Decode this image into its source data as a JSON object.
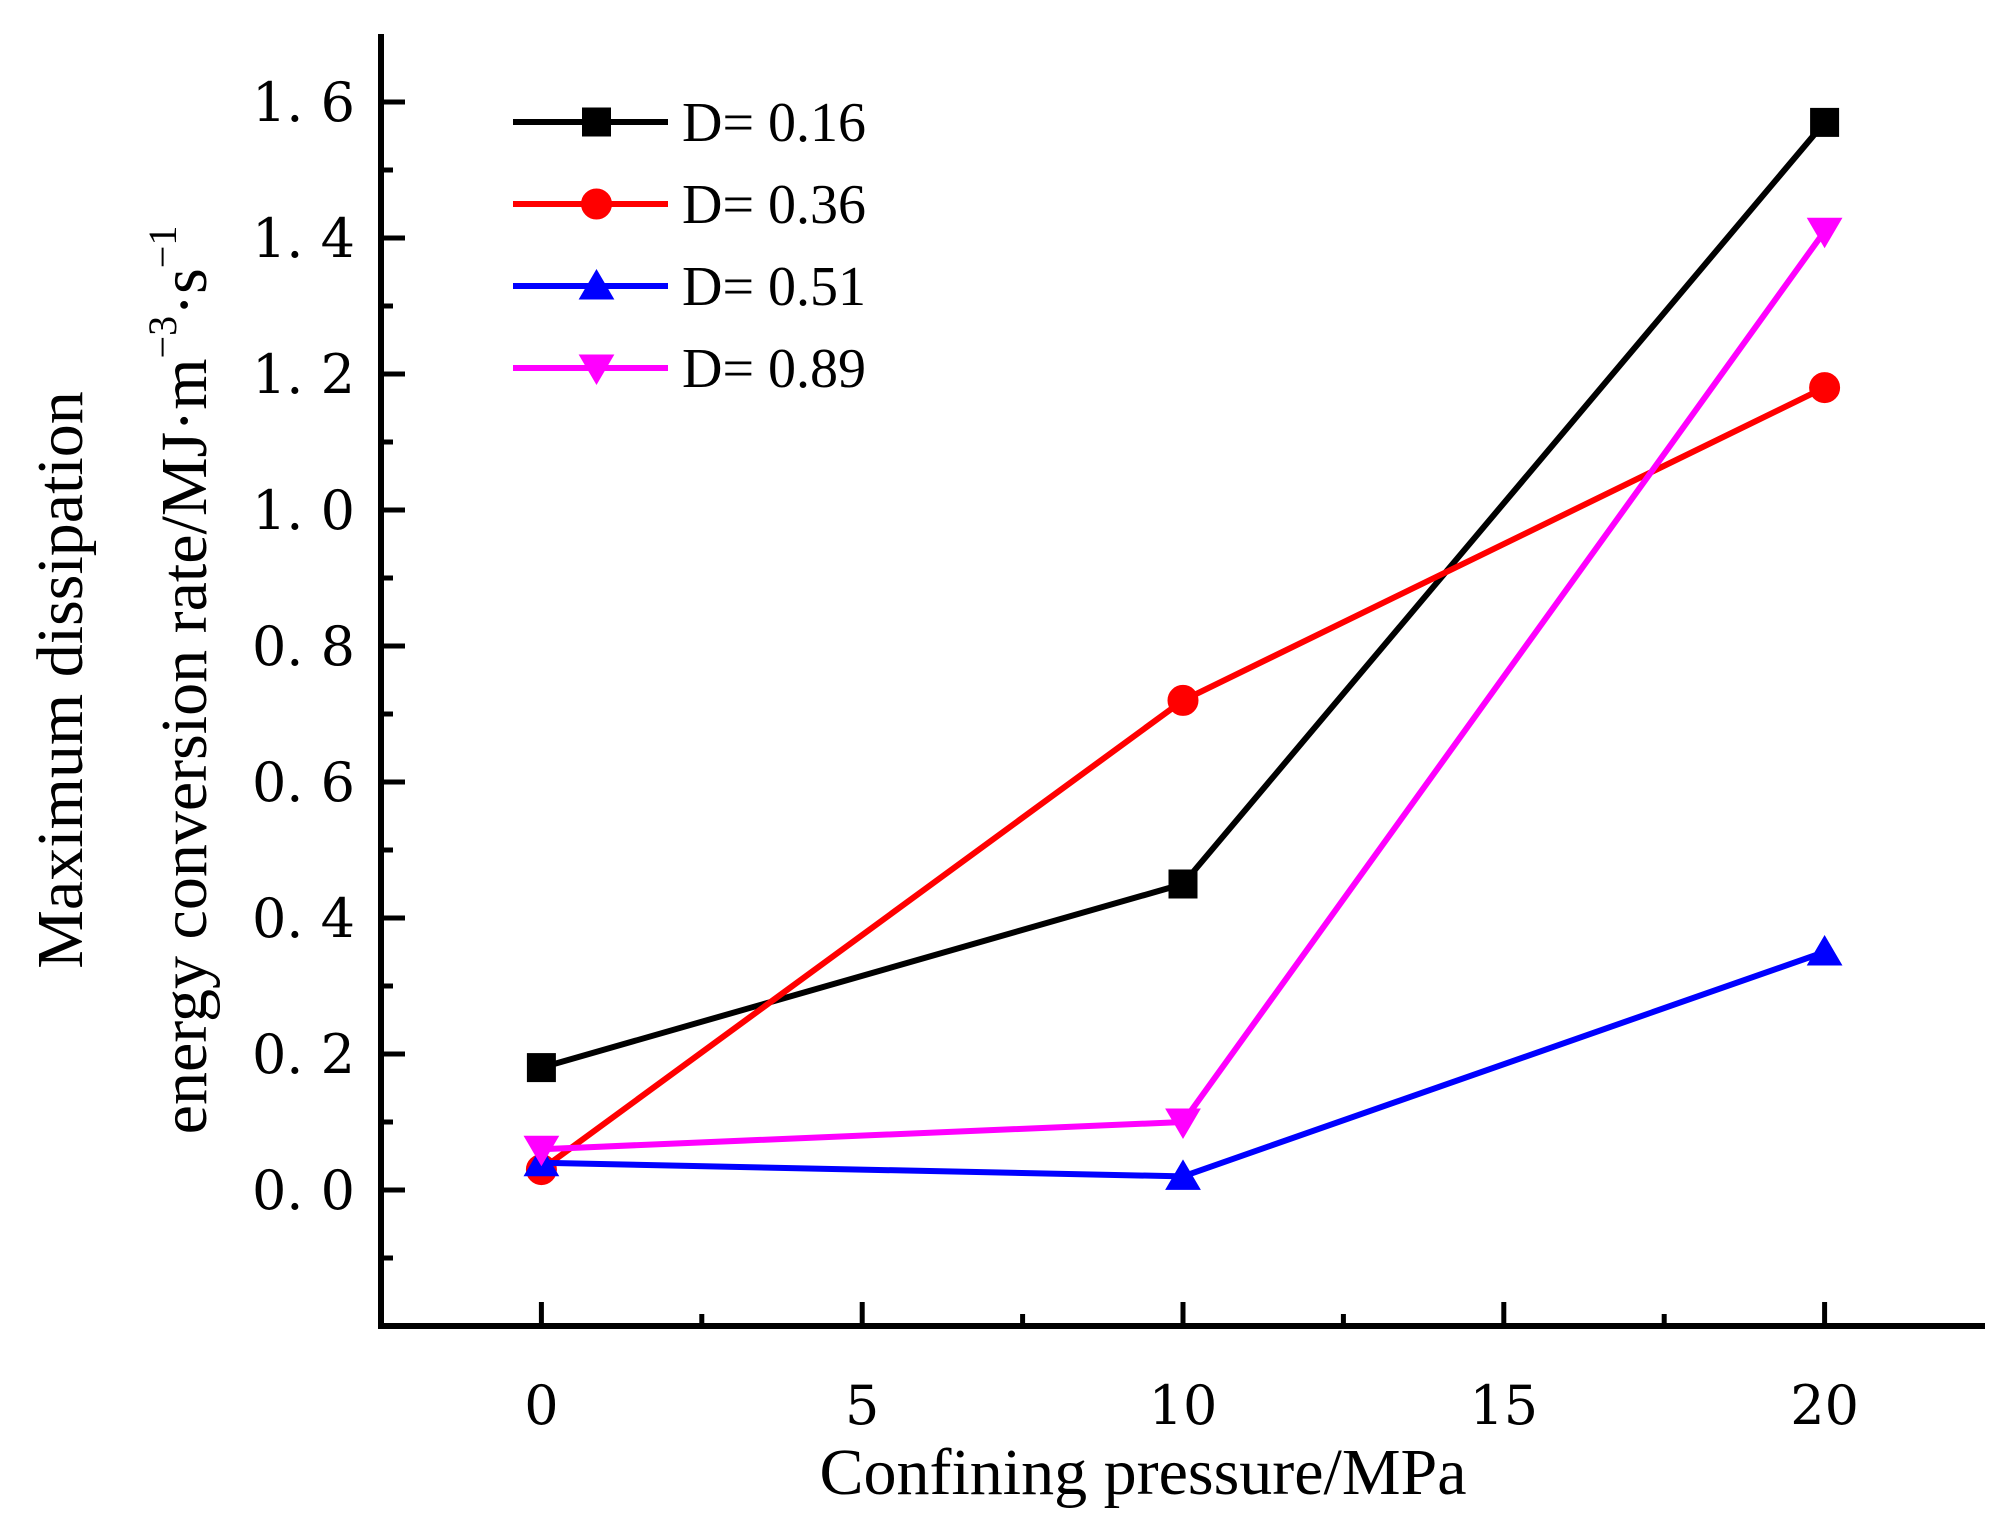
{
  "chart_data": {
    "type": "line",
    "xlabel": "Confining pressure/MPa",
    "ylabel": {
      "line1": "Maximum dissipation",
      "line2_main": "energy conversion rate/MJ·m",
      "sup1": "−3",
      "mid": "·s",
      "sup2": "−1"
    },
    "xlim": [
      -2.5,
      22.5
    ],
    "ylim": [
      -0.2,
      1.7
    ],
    "x_ticks": [
      0,
      5,
      10,
      15,
      20
    ],
    "x_tick_labels": [
      "0",
      "5",
      "10",
      "15",
      "20"
    ],
    "x_minor_ticks": [
      2.5,
      7.5,
      12.5,
      17.5
    ],
    "y_ticks": [
      0.0,
      0.2,
      0.4,
      0.6,
      0.8,
      1.0,
      1.2,
      1.4,
      1.6
    ],
    "y_tick_labels": [
      "0. 0",
      "0. 2",
      "0. 4",
      "0. 6",
      "0. 8",
      "1. 0",
      "1. 2",
      "1. 4",
      "1. 6"
    ],
    "y_minor_ticks": [
      -0.1,
      0.1,
      0.3,
      0.5,
      0.7,
      0.9,
      1.1,
      1.3,
      1.5
    ],
    "legend_position": "top-left",
    "series": [
      {
        "name": "D= 0.16",
        "color": "#000000",
        "marker": "square",
        "x": [
          0,
          10,
          20
        ],
        "y": [
          0.18,
          0.45,
          1.57
        ]
      },
      {
        "name": "D= 0.36",
        "color": "#ff0000",
        "marker": "circle",
        "x": [
          0,
          10,
          20
        ],
        "y": [
          0.03,
          0.72,
          1.18
        ]
      },
      {
        "name": "D= 0.51",
        "color": "#0000ff",
        "marker": "triangle-up",
        "x": [
          0,
          10,
          20
        ],
        "y": [
          0.04,
          0.02,
          0.35
        ]
      },
      {
        "name": "D= 0.89",
        "color": "#ff00ff",
        "marker": "triangle-down",
        "x": [
          0,
          10,
          20
        ],
        "y": [
          0.06,
          0.1,
          1.41
        ]
      }
    ]
  }
}
